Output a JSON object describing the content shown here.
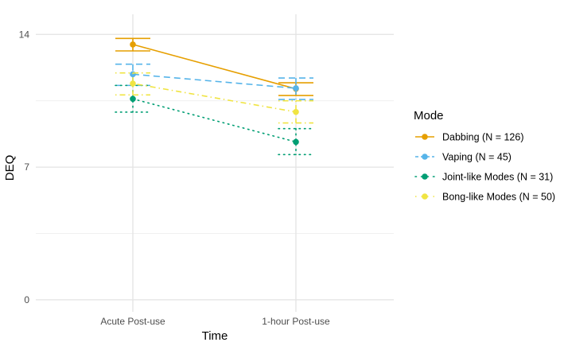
{
  "chart_data": {
    "type": "line",
    "title": "",
    "xlabel": "Time",
    "ylabel": "DEQ",
    "categories": [
      "Acute Post-use",
      "1-hour Post-use"
    ],
    "ylim": [
      0,
      15
    ],
    "yticks": [
      0,
      7,
      14
    ],
    "grid": true,
    "legend": {
      "title": "Mode",
      "placement": "right"
    },
    "series": [
      {
        "name": "Dabbing (N = 126)",
        "color": "#E69F00",
        "dash": "solid",
        "values": [
          13.47,
          11.13
        ],
        "lower": [
          13.13,
          10.78
        ],
        "upper": [
          13.79,
          11.45
        ]
      },
      {
        "name": "Vaping (N = 45)",
        "color": "#56B4E9",
        "dash": "dashed",
        "values": [
          11.9,
          11.16
        ],
        "lower": [
          11.31,
          10.57
        ],
        "upper": [
          12.43,
          11.7
        ]
      },
      {
        "name": "Joint-like Modes (N = 31)",
        "color": "#009E73",
        "dash": "dotted",
        "values": [
          10.6,
          8.33
        ],
        "lower": [
          9.9,
          7.66
        ],
        "upper": [
          11.31,
          9.03
        ]
      },
      {
        "name": "Bong-like Modes (N = 50)",
        "color": "#F0E442",
        "dash": "dotdash",
        "values": [
          11.41,
          9.91
        ],
        "lower": [
          10.81,
          9.33
        ],
        "upper": [
          11.97,
          10.5
        ]
      }
    ]
  }
}
